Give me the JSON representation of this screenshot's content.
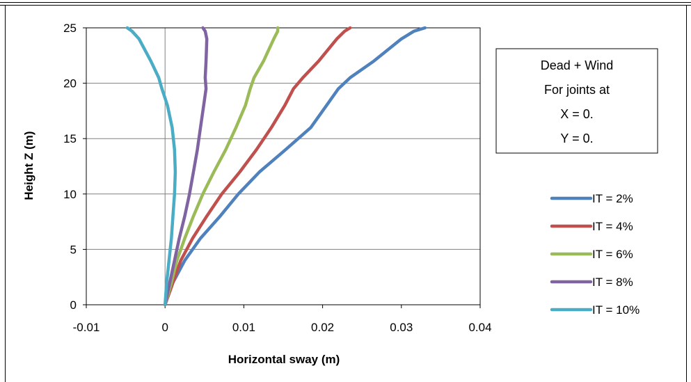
{
  "chart_data": {
    "type": "line",
    "title": "",
    "xlabel": "Horizontal sway (m)",
    "ylabel": "Height Z (m)",
    "xlim": [
      -0.01,
      0.04
    ],
    "ylim": [
      0,
      25
    ],
    "x_ticks": [
      "-0.01",
      "0",
      "0.01",
      "0.02",
      "0.03",
      "0.04"
    ],
    "y_ticks": [
      "0",
      "5",
      "10",
      "15",
      "20",
      "25"
    ],
    "grid": "horizontal",
    "legend_position": "right",
    "annotation": [
      "Dead + Wind",
      "For joints at",
      "X = 0.",
      "Y = 0."
    ],
    "series": [
      {
        "name": "IT = 2%",
        "color": "#4F81BD",
        "points": [
          [
            0,
            0
          ],
          [
            0.001,
            2
          ],
          [
            0.0025,
            4
          ],
          [
            0.0045,
            6
          ],
          [
            0.007,
            8
          ],
          [
            0.0093,
            10
          ],
          [
            0.012,
            12
          ],
          [
            0.0153,
            14
          ],
          [
            0.0185,
            16
          ],
          [
            0.0205,
            18
          ],
          [
            0.022,
            19.5
          ],
          [
            0.0235,
            20.5
          ],
          [
            0.0265,
            22
          ],
          [
            0.03,
            24
          ],
          [
            0.0316,
            24.7
          ],
          [
            0.033,
            25
          ]
        ]
      },
      {
        "name": "IT = 4%",
        "color": "#C0504D",
        "points": [
          [
            0,
            0
          ],
          [
            0.001,
            2
          ],
          [
            0.002,
            4
          ],
          [
            0.0035,
            6
          ],
          [
            0.0053,
            8
          ],
          [
            0.0072,
            10
          ],
          [
            0.0095,
            12
          ],
          [
            0.0116,
            14
          ],
          [
            0.0135,
            16
          ],
          [
            0.0152,
            18
          ],
          [
            0.0163,
            19.5
          ],
          [
            0.0175,
            20.5
          ],
          [
            0.0195,
            22
          ],
          [
            0.0218,
            24
          ],
          [
            0.0228,
            24.7
          ],
          [
            0.0235,
            25
          ]
        ]
      },
      {
        "name": "IT = 6%",
        "color": "#9BBB59",
        "points": [
          [
            0,
            0
          ],
          [
            0.0008,
            2
          ],
          [
            0.0015,
            4
          ],
          [
            0.0025,
            6
          ],
          [
            0.0036,
            8
          ],
          [
            0.0048,
            10
          ],
          [
            0.0062,
            12
          ],
          [
            0.0077,
            14
          ],
          [
            0.009,
            16
          ],
          [
            0.0102,
            18
          ],
          [
            0.0108,
            19.5
          ],
          [
            0.0113,
            20.5
          ],
          [
            0.0125,
            22
          ],
          [
            0.0138,
            24
          ],
          [
            0.0143,
            24.7
          ],
          [
            0.0143,
            25
          ]
        ]
      },
      {
        "name": "IT = 8%",
        "color": "#8064A2",
        "points": [
          [
            0,
            0
          ],
          [
            0.0006,
            2
          ],
          [
            0.0012,
            4
          ],
          [
            0.0018,
            6
          ],
          [
            0.0025,
            8
          ],
          [
            0.0031,
            10
          ],
          [
            0.0036,
            12
          ],
          [
            0.0041,
            14
          ],
          [
            0.0045,
            16
          ],
          [
            0.0049,
            18
          ],
          [
            0.0052,
            19.5
          ],
          [
            0.0051,
            20.5
          ],
          [
            0.0052,
            22
          ],
          [
            0.0053,
            24
          ],
          [
            0.0051,
            24.7
          ],
          [
            0.0048,
            25
          ]
        ]
      },
      {
        "name": "IT = 10%",
        "color": "#4BACC6",
        "points": [
          [
            0,
            0
          ],
          [
            0.0002,
            2
          ],
          [
            0.0005,
            4
          ],
          [
            0.0008,
            6
          ],
          [
            0.001,
            8
          ],
          [
            0.0012,
            10
          ],
          [
            0.0013,
            12
          ],
          [
            0.0012,
            14
          ],
          [
            0.0009,
            16
          ],
          [
            0.0003,
            18
          ],
          [
            -0.0004,
            19.5
          ],
          [
            -0.0008,
            20.5
          ],
          [
            -0.0018,
            22
          ],
          [
            -0.0033,
            24
          ],
          [
            -0.0042,
            24.7
          ],
          [
            -0.0048,
            25
          ]
        ]
      }
    ]
  }
}
